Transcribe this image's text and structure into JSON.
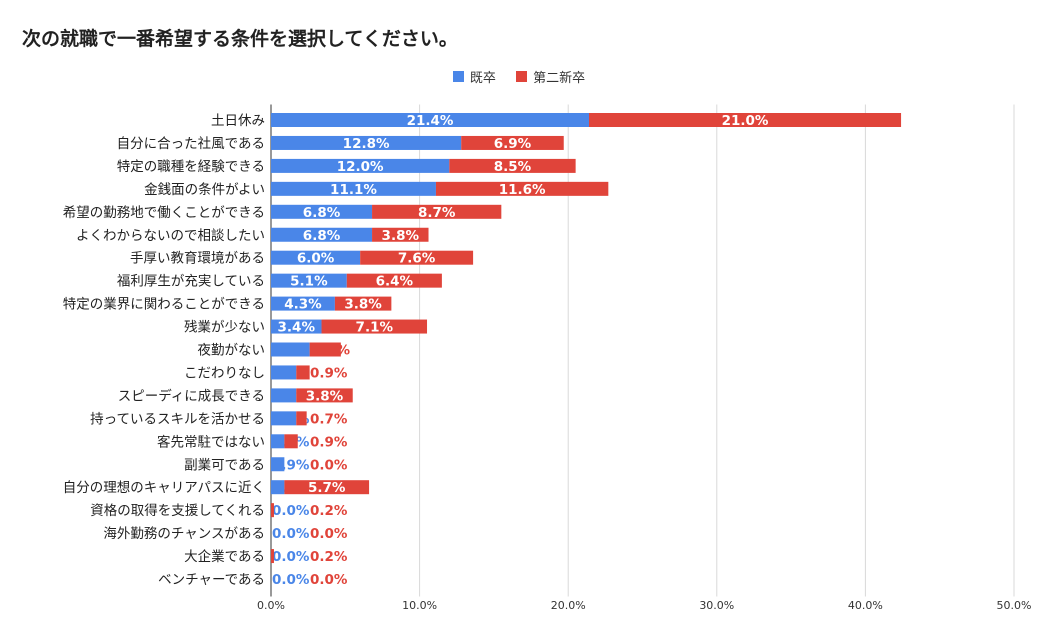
{
  "chart_data": {
    "type": "bar",
    "orientation": "horizontal",
    "stacked": true,
    "title": "次の就職で一番希望する条件を選択してください。",
    "legend_position": "top-center",
    "grid": true,
    "xlim": [
      0,
      50
    ],
    "xticks": [
      "0.0%",
      "10.0%",
      "20.0%",
      "30.0%",
      "40.0%",
      "50.0%"
    ],
    "colors": [
      "#4a86e8",
      "#e0443a"
    ],
    "categories": [
      "土日休み",
      "自分に合った社風である",
      "特定の職種を経験できる",
      "金銭面の条件がよい",
      "希望の勤務地で働くことができる",
      "よくわからないので相談したい",
      "手厚い教育環境がある",
      "福利厚生が充実している",
      "特定の業界に関わることができる",
      "残業が少ない",
      "夜勤がない",
      "こだわりなし",
      "スピーディに成長できる",
      "持っているスキルを活かせる",
      "客先常駐ではない",
      "副業可である",
      "自分の理想のキャリアパスに近く",
      "資格の取得を支援してくれる",
      "海外勤務のチャンスがある",
      "大企業である",
      "ベンチャーである"
    ],
    "series": [
      {
        "name": "既卒",
        "values": [
          21.4,
          12.8,
          12.0,
          11.1,
          6.8,
          6.8,
          6.0,
          5.1,
          4.3,
          3.4,
          2.6,
          1.7,
          1.7,
          1.7,
          0.9,
          0.9,
          0.9,
          0.0,
          0.0,
          0.0,
          0.0
        ],
        "labels": [
          "21.4%",
          "12.8%",
          "12.0%",
          "11.1%",
          "6.8%",
          "6.8%",
          "6.0%",
          "5.1%",
          "4.3%",
          "3.4%",
          "2.6%",
          "1.7%",
          "1.7%",
          "1.7%",
          "0.9%",
          "0.9%",
          "0.9%",
          "0.0%",
          "0.0%",
          "0.0%",
          "0.0%"
        ]
      },
      {
        "name": "第二新卒",
        "values": [
          21.0,
          6.9,
          8.5,
          11.6,
          8.7,
          3.8,
          7.6,
          6.4,
          3.8,
          7.1,
          2.1,
          0.9,
          3.8,
          0.7,
          0.9,
          0.0,
          5.7,
          0.2,
          0.0,
          0.2,
          0.0
        ],
        "labels": [
          "21.0%",
          "6.9%",
          "8.5%",
          "11.6%",
          "8.7%",
          "3.8%",
          "7.6%",
          "6.4%",
          "3.8%",
          "7.1%",
          "2.1%",
          "0.9%",
          "3.8%",
          "0.7%",
          "0.9%",
          "0.0%",
          "5.7%",
          "0.2%",
          "0.0%",
          "0.2%",
          "0.0%"
        ]
      }
    ]
  }
}
